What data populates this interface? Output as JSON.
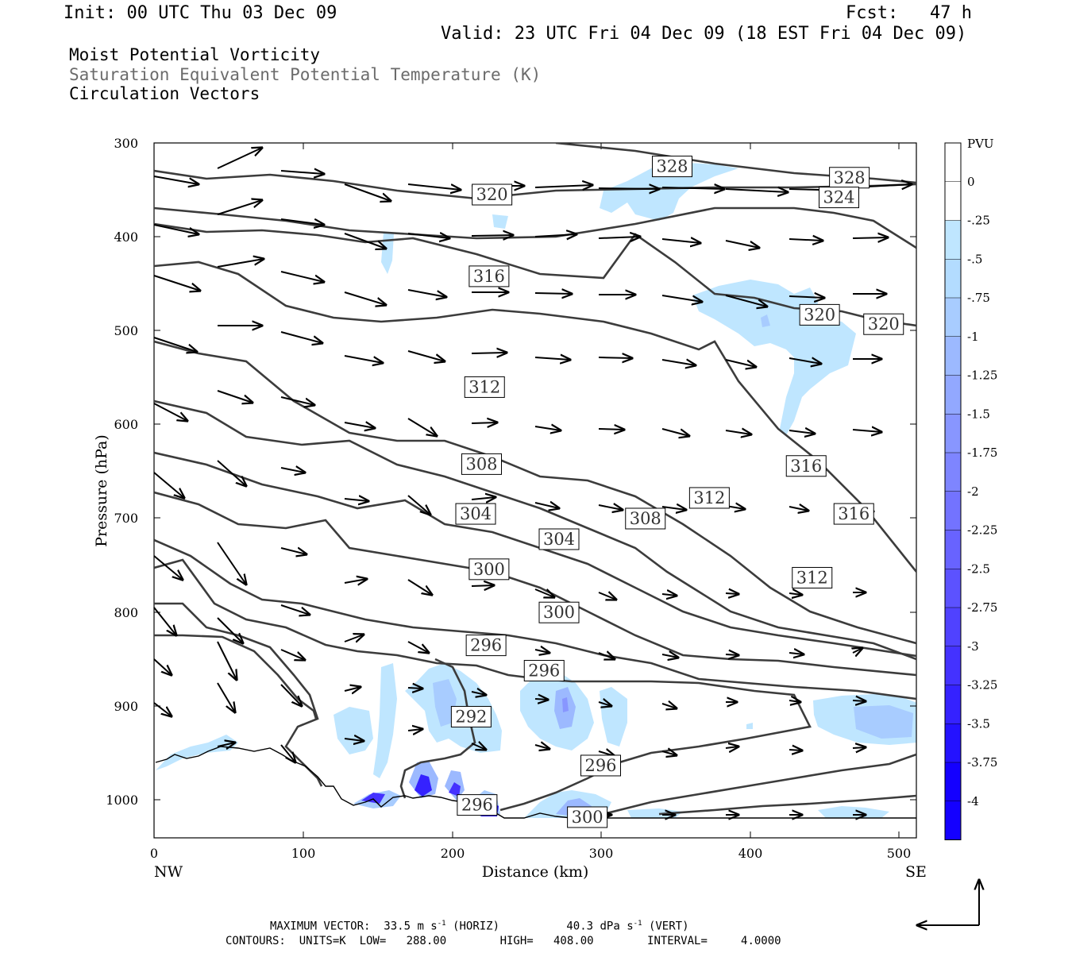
{
  "header": {
    "init": "Init: 00 UTC Thu 03 Dec 09",
    "fcst": "Fcst:   47 h",
    "valid": "Valid: 23 UTC Fri 04 Dec 09 (18 EST Fri 04 Dec 09)",
    "field1": "Moist Potential Vorticity",
    "field2": "Saturation Equivalent Potential Temperature (K)",
    "field3": "Circulation Vectors"
  },
  "chart_data": {
    "type": "contour-cross-section",
    "xlabel": "Distance (km)",
    "ylabel": "Pressure (hPa)",
    "xlim": [
      0,
      512
    ],
    "ylim": [
      1040,
      300
    ],
    "x_ticks": [
      0,
      100,
      200,
      300,
      400,
      500
    ],
    "y_ticks": [
      300,
      400,
      500,
      600,
      700,
      800,
      900,
      1000
    ],
    "x_end_labels": {
      "left": "NW",
      "right": "SE"
    },
    "colorbar": {
      "unit": "PVU",
      "levels": [
        "0",
        "-.25",
        "-.5",
        "-.75",
        "-1",
        "-1.25",
        "-1.5",
        "-1.75",
        "-2",
        "-2.25",
        "-2.5",
        "-2.75",
        "-3",
        "-3.25",
        "-3.5",
        "-3.75",
        "-4"
      ],
      "colors": [
        "#ffffff",
        "#ffffff",
        "#bfe6ff",
        "#b3dcff",
        "#a8ccff",
        "#9cb9ff",
        "#92a8ff",
        "#8896ff",
        "#7e85ff",
        "#7373ff",
        "#6863ff",
        "#5c52ff",
        "#5042ff",
        "#4432ff",
        "#3522ff",
        "#2412ff",
        "#1400ff"
      ]
    },
    "theta_es_contour_labels": [
      {
        "value": "328",
        "x": 348,
        "p": 325
      },
      {
        "value": "328",
        "x": 467,
        "p": 337
      },
      {
        "value": "324",
        "x": 460,
        "p": 358
      },
      {
        "value": "320",
        "x": 227,
        "p": 355
      },
      {
        "value": "320",
        "x": 447,
        "p": 483
      },
      {
        "value": "320",
        "x": 490,
        "p": 493
      },
      {
        "value": "316",
        "x": 225,
        "p": 442
      },
      {
        "value": "316",
        "x": 438,
        "p": 644
      },
      {
        "value": "316",
        "x": 470,
        "p": 695
      },
      {
        "value": "312",
        "x": 222,
        "p": 560
      },
      {
        "value": "312",
        "x": 373,
        "p": 678
      },
      {
        "value": "312",
        "x": 442,
        "p": 763
      },
      {
        "value": "308",
        "x": 220,
        "p": 642
      },
      {
        "value": "308",
        "x": 330,
        "p": 700
      },
      {
        "value": "304",
        "x": 216,
        "p": 695
      },
      {
        "value": "304",
        "x": 272,
        "p": 722
      },
      {
        "value": "300",
        "x": 225,
        "p": 754
      },
      {
        "value": "300",
        "x": 272,
        "p": 800
      },
      {
        "value": "296",
        "x": 223,
        "p": 835
      },
      {
        "value": "296",
        "x": 262,
        "p": 862
      },
      {
        "value": "296",
        "x": 300,
        "p": 963
      },
      {
        "value": "296",
        "x": 217,
        "p": 1005
      },
      {
        "value": "292",
        "x": 213,
        "p": 911
      },
      {
        "value": "300",
        "x": 291,
        "p": 1018
      }
    ],
    "contour_low": 288.0,
    "contour_high": 408.0,
    "contour_interval": 4.0
  },
  "footer": {
    "max_vector_label": "MAXIMUM VECTOR:",
    "horiz_value": "33.5",
    "horiz_unit": "m s",
    "horiz_exp": "-1",
    "horiz_tag": "(HORIZ)",
    "vert_value": "40.3",
    "vert_unit": "dPa s",
    "vert_exp": "-1",
    "vert_tag": "(VERT)",
    "contours_line": "CONTOURS:  UNITS=K  LOW=   288.00        HIGH=   408.00        INTERVAL=     4.0000"
  }
}
